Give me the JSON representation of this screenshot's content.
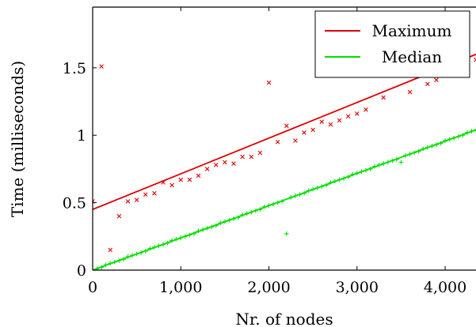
{
  "chart_data": {
    "type": "scatter",
    "xlabel": "Nr. of nodes",
    "ylabel": "Time (milliseconds)",
    "xlim": [
      0,
      4350
    ],
    "ylim": [
      0,
      1.95
    ],
    "xticks": [
      0,
      1000,
      2000,
      3000,
      4000
    ],
    "xtick_labels": [
      "0",
      "1,000",
      "2,000",
      "3,000",
      "4,000"
    ],
    "yticks": [
      0,
      0.5,
      1,
      1.5
    ],
    "ytick_labels": [
      "0",
      "0.5",
      "1",
      "1.5"
    ],
    "grid": false,
    "legend": "top-right",
    "series": [
      {
        "name": "Maximum",
        "color": "#e00000",
        "marker": "x",
        "trend": {
          "x": [
            0,
            4350
          ],
          "y": [
            0.45,
            1.6
          ]
        },
        "points": {
          "x": [
            0,
            100,
            200,
            300,
            400,
            500,
            600,
            700,
            800,
            900,
            1000,
            1100,
            1200,
            1300,
            1400,
            1500,
            1600,
            1700,
            1800,
            1900,
            2000,
            2100,
            2200,
            2300,
            2400,
            2500,
            2600,
            2700,
            2800,
            2900,
            3000,
            3100,
            3300,
            3600,
            3700,
            3800,
            3900,
            4000,
            4100,
            4350
          ],
          "y": [
            0.51,
            1.51,
            0.15,
            0.4,
            0.51,
            0.52,
            0.56,
            0.57,
            0.65,
            0.63,
            0.67,
            0.67,
            0.7,
            0.75,
            0.78,
            0.8,
            0.79,
            0.84,
            0.84,
            0.87,
            1.39,
            0.95,
            1.07,
            0.96,
            1.02,
            1.04,
            1.1,
            1.08,
            1.11,
            1.14,
            1.16,
            1.19,
            1.28,
            1.32,
            1.45,
            1.38,
            1.41,
            1.45,
            1.5,
            1.56
          ]
        }
      },
      {
        "name": "Median",
        "color": "#00e000",
        "marker": "+",
        "trend": {
          "x": [
            0,
            4350
          ],
          "y": [
            0.0,
            1.04
          ]
        },
        "points": {
          "x": [
            0,
            50,
            100,
            150,
            200,
            250,
            300,
            350,
            400,
            450,
            500,
            550,
            600,
            650,
            700,
            750,
            800,
            850,
            900,
            950,
            1000,
            1050,
            1100,
            1150,
            1200,
            1250,
            1300,
            1350,
            1400,
            1450,
            1500,
            1550,
            1600,
            1650,
            1700,
            1750,
            1800,
            1850,
            1900,
            1950,
            2000,
            2050,
            2100,
            2150,
            2200,
            2250,
            2300,
            2350,
            2400,
            2450,
            2500,
            2550,
            2600,
            2650,
            2700,
            2750,
            2800,
            2850,
            2900,
            2950,
            3000,
            3050,
            3100,
            3150,
            3200,
            3250,
            3300,
            3350,
            3400,
            3450,
            3500,
            3550,
            3600,
            3650,
            3700,
            3750,
            3800,
            3850,
            3900,
            3950,
            4000,
            4050,
            4100,
            4150,
            4200,
            4250,
            4300,
            4350
          ],
          "y": [
            0.0,
            0.01,
            0.02,
            0.04,
            0.05,
            0.06,
            0.07,
            0.08,
            0.1,
            0.11,
            0.12,
            0.13,
            0.14,
            0.16,
            0.17,
            0.18,
            0.19,
            0.2,
            0.22,
            0.23,
            0.24,
            0.25,
            0.26,
            0.27,
            0.29,
            0.3,
            0.31,
            0.32,
            0.33,
            0.35,
            0.36,
            0.37,
            0.38,
            0.39,
            0.41,
            0.42,
            0.43,
            0.44,
            0.45,
            0.47,
            0.48,
            0.49,
            0.5,
            0.51,
            0.27,
            0.54,
            0.55,
            0.56,
            0.57,
            0.59,
            0.6,
            0.61,
            0.62,
            0.63,
            0.65,
            0.66,
            0.67,
            0.68,
            0.69,
            0.71,
            0.72,
            0.73,
            0.74,
            0.75,
            0.77,
            0.78,
            0.79,
            0.8,
            0.81,
            0.82,
            0.8,
            0.85,
            0.86,
            0.87,
            0.88,
            0.9,
            0.91,
            0.92,
            0.93,
            0.94,
            0.96,
            0.97,
            0.98,
            0.99,
            1.0,
            1.02,
            1.03,
            1.04
          ]
        }
      }
    ]
  }
}
